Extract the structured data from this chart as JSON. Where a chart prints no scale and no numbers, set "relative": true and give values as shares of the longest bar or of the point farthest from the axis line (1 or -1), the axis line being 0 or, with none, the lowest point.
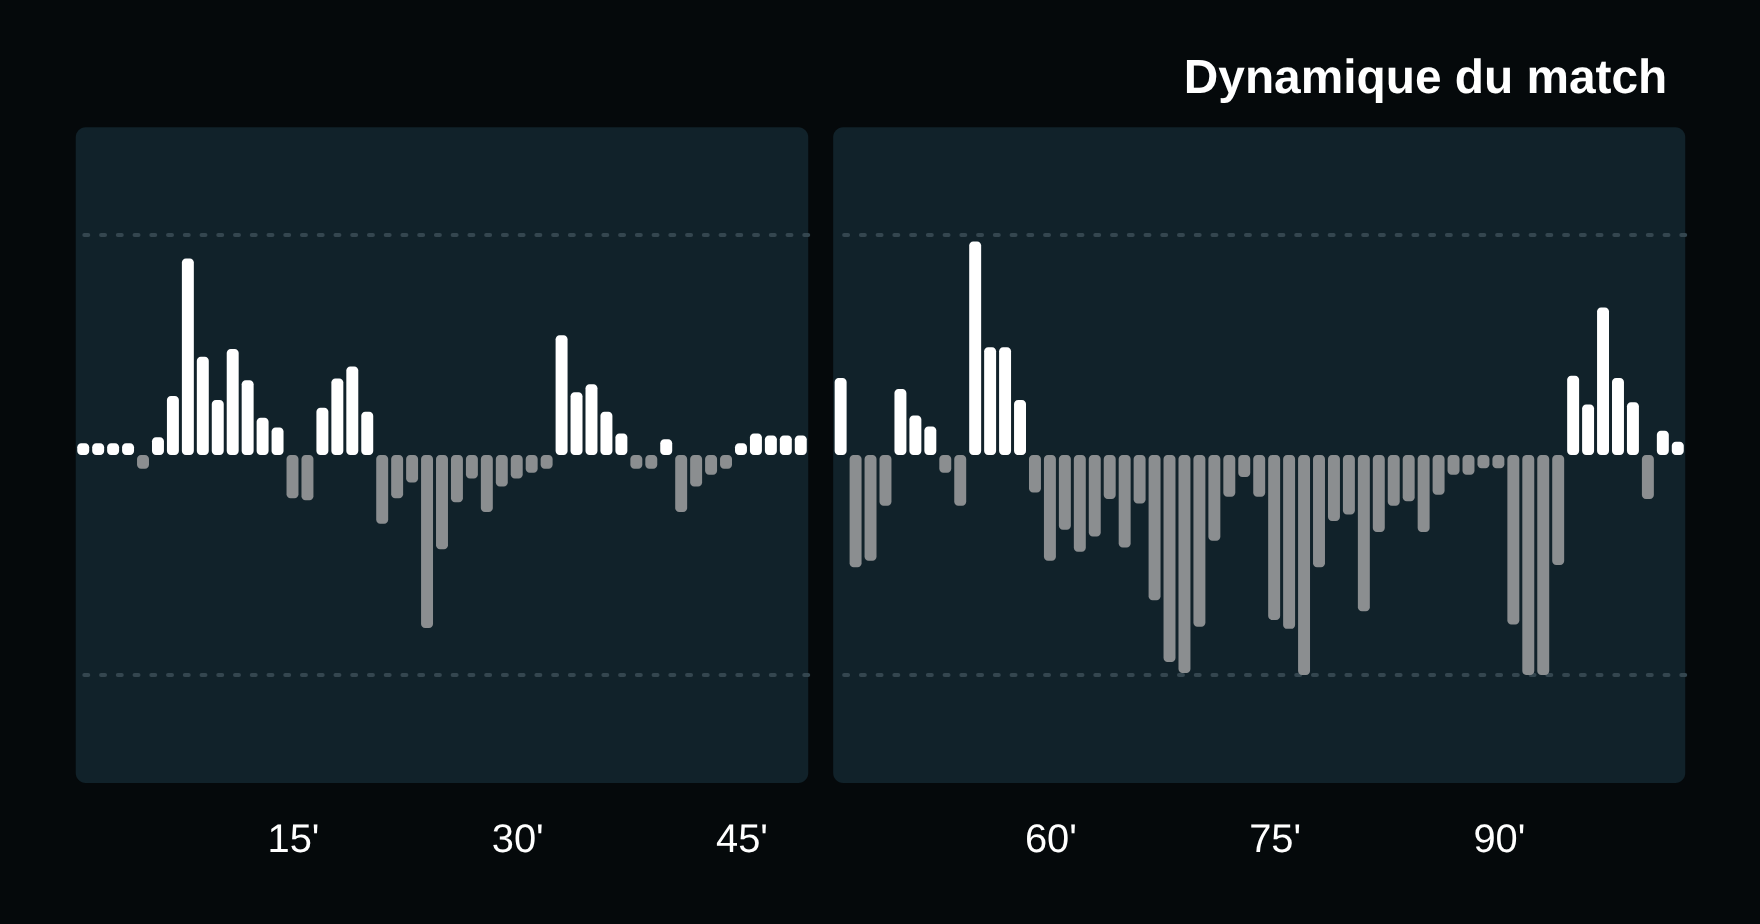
{
  "chart_data": [
    {
      "type": "bar",
      "relative": true,
      "x": [
        1,
        2,
        3,
        4,
        5,
        6,
        7,
        8,
        9,
        10,
        11,
        12,
        13,
        14,
        15,
        16,
        17,
        18,
        19,
        20,
        21,
        22,
        23,
        24,
        25,
        26,
        27,
        28,
        29,
        30,
        31,
        32,
        33,
        34,
        35,
        36,
        37,
        38,
        39,
        40,
        41,
        42,
        43,
        44,
        45,
        46,
        47,
        48,
        49
      ],
      "series": [
        {
          "values": [
            0.06,
            0.06,
            0.06,
            0.06,
            -0.07,
            0.09,
            0.3,
            1,
            0.5,
            0.28,
            0.54,
            0.38,
            0.19,
            0.14,
            -0.22,
            -0.23,
            0.24,
            0.39,
            0.45,
            0.22,
            -0.35,
            -0.22,
            -0.14,
            -0.88,
            -0.48,
            -0.24,
            -0.12,
            -0.29,
            -0.16,
            -0.12,
            -0.09,
            -0.07,
            0.61,
            0.32,
            0.36,
            0.22,
            0.11,
            -0.07,
            -0.07,
            0.08,
            -0.29,
            -0.16,
            -0.1,
            -0.07,
            0.06,
            0.11,
            0.1,
            0.1,
            0.1
          ],
          "colors": [
            "#ffffff",
            "#ffffff",
            "#ffffff",
            "#ffffff",
            "#8b8e90",
            "#ffffff",
            "#ffffff",
            "#ffffff",
            "#ffffff",
            "#ffffff",
            "#ffffff",
            "#ffffff",
            "#ffffff",
            "#ffffff",
            "#8b8e90",
            "#8b8e90",
            "#ffffff",
            "#ffffff",
            "#ffffff",
            "#ffffff",
            "#8b8e90",
            "#8b8e90",
            "#8b8e90",
            "#8b8e90",
            "#8b8e90",
            "#8b8e90",
            "#8b8e90",
            "#8b8e90",
            "#8b8e90",
            "#8b8e90",
            "#8b8e90",
            "#8b8e90",
            "#ffffff",
            "#ffffff",
            "#ffffff",
            "#ffffff",
            "#ffffff",
            "#8b8e90",
            "#8b8e90",
            "#ffffff",
            "#8b8e90",
            "#8b8e90",
            "#8b8e90",
            "#8b8e90",
            "#ffffff",
            "#ffffff",
            "#ffffff",
            "#ffffff",
            "#ffffff"
          ]
        }
      ],
      "xlim": [
        0.5,
        49.5
      ],
      "xticks": [
        {
          "value": 15,
          "label": "15'"
        },
        {
          "value": 30,
          "label": "30'"
        },
        {
          "value": 45,
          "label": "45'"
        }
      ],
      "ref_lines": [
        {
          "axis": "y",
          "value": 1.12,
          "line_style": "dotted",
          "color": "#34464f"
        },
        {
          "axis": "y",
          "value": -1.12,
          "line_style": "dotted",
          "color": "#34464f"
        }
      ]
    },
    {
      "type": "bar",
      "title": "Dynamique du match",
      "relative": true,
      "x": [
        46,
        47,
        48,
        49,
        50,
        51,
        52,
        53,
        54,
        55,
        56,
        57,
        58,
        59,
        60,
        61,
        62,
        63,
        64,
        65,
        66,
        67,
        68,
        69,
        70,
        71,
        72,
        73,
        74,
        75,
        76,
        77,
        78,
        79,
        80,
        81,
        82,
        83,
        84,
        85,
        86,
        87,
        88,
        89,
        90,
        91,
        92,
        93,
        94,
        95,
        96,
        97,
        98,
        99,
        100,
        101,
        102
      ],
      "series": [
        {
          "values": [
            0.35,
            -0.51,
            -0.48,
            -0.23,
            0.3,
            0.18,
            0.13,
            -0.08,
            -0.23,
            0.97,
            0.49,
            0.49,
            0.25,
            -0.17,
            -0.48,
            -0.34,
            -0.44,
            -0.37,
            -0.2,
            -0.42,
            -0.22,
            -0.66,
            -0.94,
            -0.99,
            -0.78,
            -0.39,
            -0.19,
            -0.1,
            -0.19,
            -0.75,
            -0.79,
            -1,
            -0.51,
            -0.3,
            -0.27,
            -0.71,
            -0.35,
            -0.23,
            -0.21,
            -0.35,
            -0.18,
            -0.09,
            -0.09,
            -0.06,
            -0.06,
            -0.77,
            -1,
            -1,
            -0.5,
            0.36,
            0.23,
            0.67,
            0.35,
            0.24,
            -0.2,
            0.11,
            0.06
          ],
          "colors": [
            "#ffffff",
            "#8b8e90",
            "#8b8e90",
            "#8b8e90",
            "#ffffff",
            "#ffffff",
            "#ffffff",
            "#8b8e90",
            "#8b8e90",
            "#ffffff",
            "#ffffff",
            "#ffffff",
            "#ffffff",
            "#8b8e90",
            "#8b8e90",
            "#8b8e90",
            "#8b8e90",
            "#8b8e90",
            "#8b8e90",
            "#8b8e90",
            "#8b8e90",
            "#8b8e90",
            "#8b8e90",
            "#8b8e90",
            "#8b8e90",
            "#8b8e90",
            "#8b8e90",
            "#8b8e90",
            "#8b8e90",
            "#8b8e90",
            "#8b8e90",
            "#8b8e90",
            "#8b8e90",
            "#8b8e90",
            "#8b8e90",
            "#8b8e90",
            "#8b8e90",
            "#8b8e90",
            "#8b8e90",
            "#8b8e90",
            "#8b8e90",
            "#8b8e90",
            "#8b8e90",
            "#8b8e90",
            "#8b8e90",
            "#8b8e90",
            "#8b8e90",
            "#8b8e90",
            "#8b8e90",
            "#ffffff",
            "#ffffff",
            "#ffffff",
            "#ffffff",
            "#ffffff",
            "#8b8e90",
            "#ffffff",
            "#ffffff"
          ]
        }
      ],
      "xlim": [
        45.5,
        102.5
      ],
      "xticks": [
        {
          "value": 60,
          "label": "60'"
        },
        {
          "value": 75,
          "label": "75'"
        },
        {
          "value": 90,
          "label": "90'"
        }
      ],
      "ref_lines": [
        {
          "axis": "y",
          "value": 1,
          "line_style": "dotted",
          "color": "#34464f"
        },
        {
          "axis": "y",
          "value": -1,
          "line_style": "dotted",
          "color": "#34464f"
        }
      ]
    }
  ]
}
